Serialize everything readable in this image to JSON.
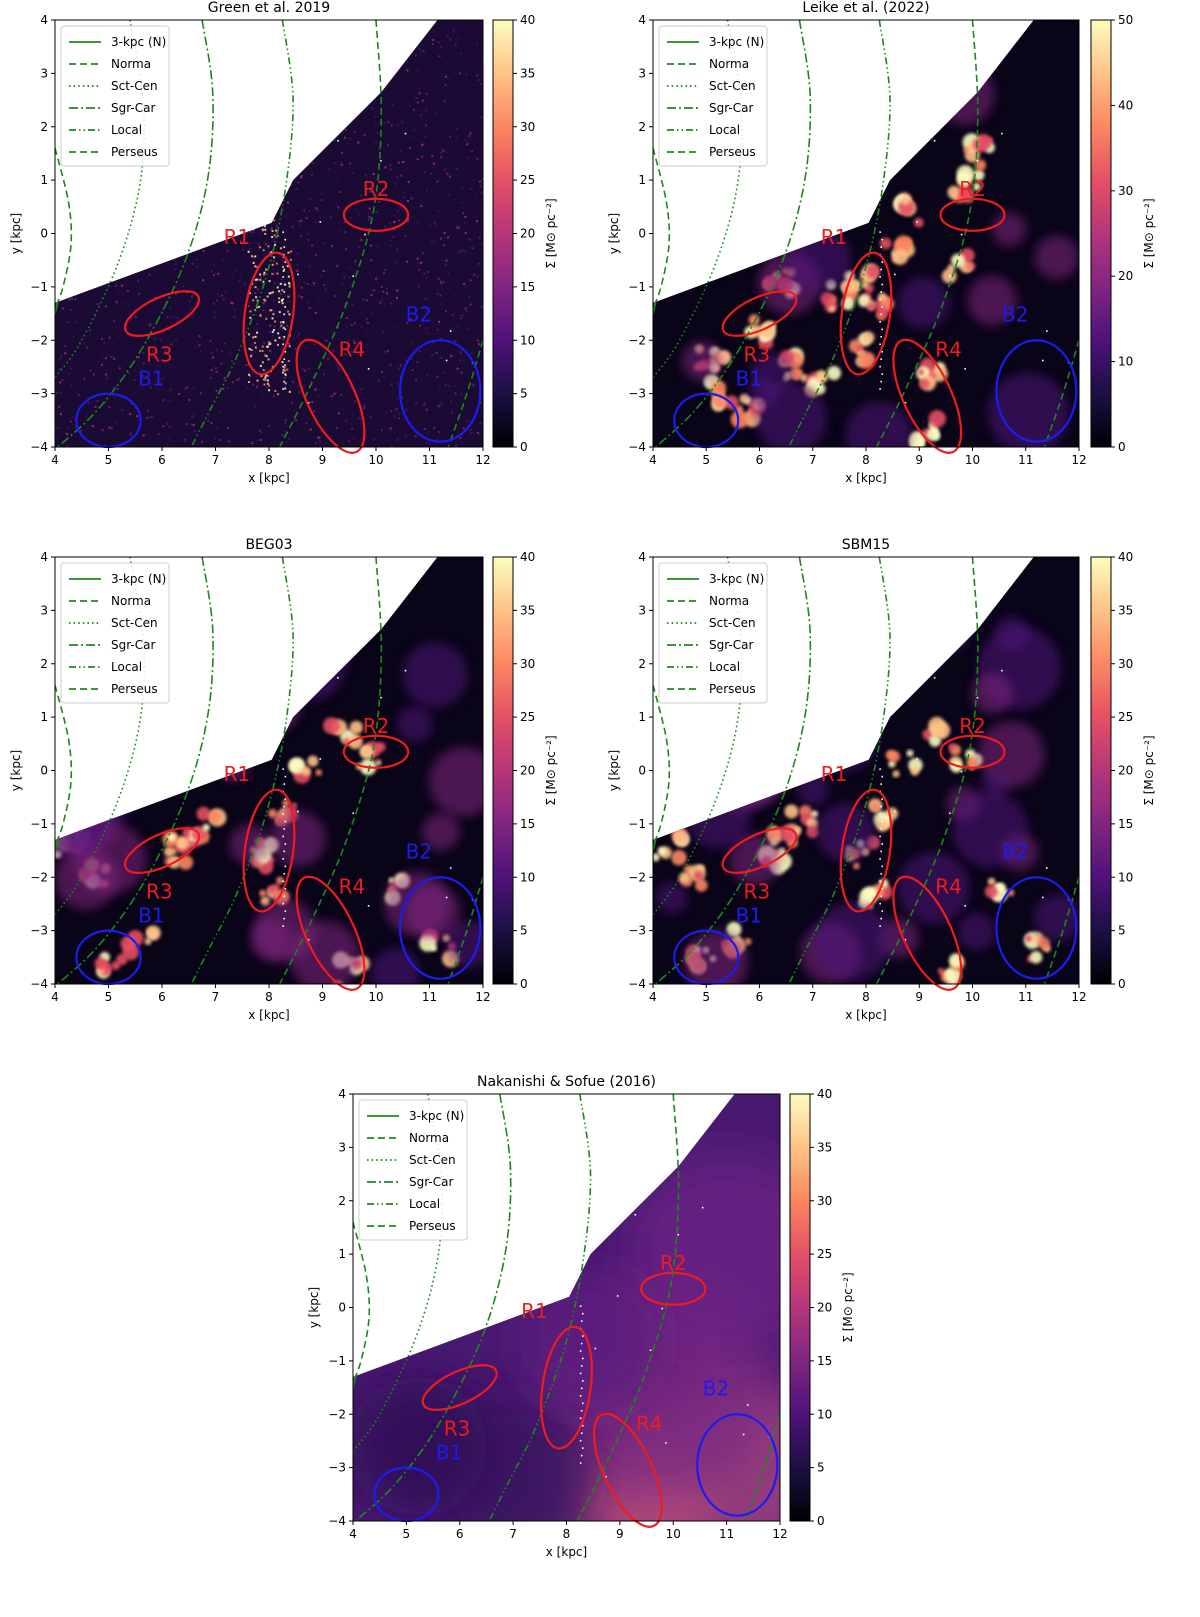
{
  "colormap": [
    "#000004",
    "#1c1044",
    "#4f127b",
    "#812581",
    "#b5367a",
    "#e55064",
    "#fb8761",
    "#fec287",
    "#fcfdbf"
  ],
  "arm_color": "#1a8a1a",
  "region_red": "#ee1c1c",
  "region_blue": "#1c1cee",
  "panel_bg_tone": "#2a0a44",
  "axes": {
    "xlabel": "x [kpc]",
    "ylabel": "y [kpc]",
    "xlim": [
      4,
      12
    ],
    "ylim": [
      -4,
      4
    ],
    "xticks": [
      "4",
      "5",
      "6",
      "7",
      "8",
      "9",
      "10",
      "11",
      "12"
    ],
    "yticks": [
      "4",
      "3",
      "2",
      "1",
      "0",
      "−1",
      "−2",
      "−3",
      "−4"
    ]
  },
  "legend_entries": [
    {
      "label": "3-kpc (N)",
      "style": "solid"
    },
    {
      "label": "Norma",
      "style": "dashed"
    },
    {
      "label": "Sct-Cen",
      "style": "dotted"
    },
    {
      "label": "Sgr-Car",
      "style": "dashdot"
    },
    {
      "label": "Local",
      "style": "dashdotdot"
    },
    {
      "label": "Perseus",
      "style": "dashed"
    }
  ],
  "colorbar_label": "Σ [M⊙ pc⁻²]",
  "regions": [
    {
      "name": "R1",
      "color": "red",
      "cx": 8.0,
      "cy": -1.5,
      "rx": 0.45,
      "ry": 1.15,
      "angle_deg": -8,
      "label_x": 7.4,
      "label_y": -0.2
    },
    {
      "name": "R2",
      "color": "red",
      "cx": 10.0,
      "cy": 0.35,
      "rx": 0.6,
      "ry": 0.3,
      "angle_deg": 0,
      "label_x": 10.0,
      "label_y": 0.7
    },
    {
      "name": "R3",
      "color": "red",
      "cx": 6.0,
      "cy": -1.5,
      "rx": 0.75,
      "ry": 0.3,
      "angle_deg": 25,
      "label_x": 5.95,
      "label_y": -2.4
    },
    {
      "name": "R4",
      "color": "red",
      "cx": 9.15,
      "cy": -3.05,
      "rx": 0.45,
      "ry": 1.15,
      "angle_deg": 25,
      "label_x": 9.55,
      "label_y": -2.3
    },
    {
      "name": "B1",
      "color": "blue",
      "cx": 5.0,
      "cy": -3.5,
      "rx": 0.6,
      "ry": 0.5,
      "angle_deg": 0,
      "label_x": 5.8,
      "label_y": -2.85
    },
    {
      "name": "B2",
      "color": "blue",
      "cx": 11.2,
      "cy": -2.95,
      "rx": 0.75,
      "ry": 0.95,
      "angle_deg": 0,
      "label_x": 10.8,
      "label_y": -1.65
    }
  ],
  "chart_data": [
    {
      "type": "heatmap",
      "title": "Green et al. 2019",
      "texture": "fine",
      "vmin": 0,
      "vmax": 40,
      "cbar_ticks": [
        0,
        5,
        10,
        15,
        20,
        25,
        30,
        35,
        40
      ]
    },
    {
      "type": "heatmap",
      "title": "Leike et al. (2022)",
      "texture": "clumpy",
      "vmin": 0,
      "vmax": 50,
      "cbar_ticks": [
        0,
        10,
        20,
        30,
        40,
        50
      ]
    },
    {
      "type": "heatmap",
      "title": "BEG03",
      "texture": "blobby",
      "vmin": 0,
      "vmax": 40,
      "cbar_ticks": [
        0,
        5,
        10,
        15,
        20,
        25,
        30,
        35,
        40
      ]
    },
    {
      "type": "heatmap",
      "title": "SBM15",
      "texture": "blobby",
      "vmin": 0,
      "vmax": 40,
      "cbar_ticks": [
        0,
        5,
        10,
        15,
        20,
        25,
        30,
        35,
        40
      ]
    },
    {
      "type": "heatmap",
      "title": "Nakanishi & Sofue (2016)",
      "texture": "smooth",
      "vmin": 0,
      "vmax": 40,
      "cbar_ticks": [
        0,
        5,
        10,
        15,
        20,
        25,
        30,
        35,
        40
      ]
    }
  ]
}
